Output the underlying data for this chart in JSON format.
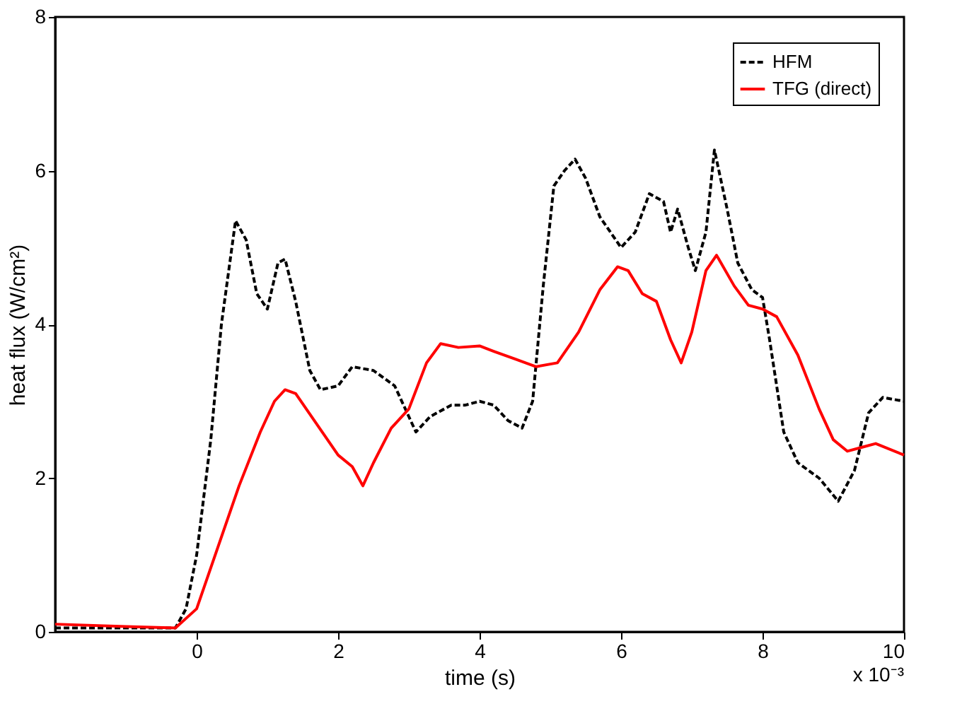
{
  "chart_data": {
    "type": "line",
    "xlabel": "time (s)",
    "ylabel": "heat flux (W/cm²)",
    "xlim": [
      -2,
      10
    ],
    "xticks": [
      0,
      2,
      4,
      6,
      8,
      10
    ],
    "ylim": [
      0,
      8
    ],
    "yticks": [
      0,
      2,
      4,
      6,
      8
    ],
    "grid": false,
    "legend": "top right",
    "marker": "none",
    "annotations": [
      "x 10⁻³"
    ],
    "series": [
      {
        "name": "HFM",
        "color": "#000000",
        "line_style": "dashed",
        "x": [
          -2,
          -1,
          -0.3,
          -0.15,
          0,
          0.2,
          0.35,
          0.55,
          0.7,
          0.85,
          1.0,
          1.15,
          1.25,
          1.4,
          1.6,
          1.75,
          2.0,
          2.2,
          2.5,
          2.8,
          3.0,
          3.1,
          3.3,
          3.6,
          3.8,
          4.0,
          4.2,
          4.4,
          4.6,
          4.75,
          4.9,
          5.05,
          5.2,
          5.35,
          5.5,
          5.7,
          6.0,
          6.2,
          6.4,
          6.6,
          6.7,
          6.8,
          6.95,
          7.05,
          7.2,
          7.32,
          7.5,
          7.65,
          7.85,
          8.0,
          8.1,
          8.3,
          8.5,
          8.8,
          9.07,
          9.3,
          9.5,
          9.7,
          10.0
        ],
        "values": [
          0.05,
          0.05,
          0.05,
          0.3,
          1.0,
          2.5,
          4.0,
          5.35,
          5.1,
          4.4,
          4.2,
          4.8,
          4.85,
          4.3,
          3.4,
          3.15,
          3.2,
          3.45,
          3.4,
          3.2,
          2.8,
          2.6,
          2.8,
          2.95,
          2.95,
          3.0,
          2.95,
          2.75,
          2.65,
          3.0,
          4.5,
          5.8,
          6.0,
          6.15,
          5.9,
          5.4,
          5.0,
          5.2,
          5.7,
          5.6,
          5.2,
          5.5,
          5.0,
          4.7,
          5.2,
          6.27,
          5.5,
          4.8,
          4.45,
          4.35,
          3.8,
          2.6,
          2.2,
          2.0,
          1.7,
          2.1,
          2.85,
          3.05,
          3.0
        ]
      },
      {
        "name": "TFG (direct)",
        "color": "#ff0000",
        "line_style": "solid",
        "x": [
          -2,
          -1,
          -0.3,
          0,
          0.3,
          0.6,
          0.9,
          1.1,
          1.25,
          1.4,
          1.7,
          2.0,
          2.2,
          2.35,
          2.5,
          2.75,
          3.0,
          3.25,
          3.45,
          3.7,
          4.0,
          4.2,
          4.5,
          4.8,
          5.1,
          5.4,
          5.7,
          5.95,
          6.1,
          6.3,
          6.5,
          6.7,
          6.85,
          7.0,
          7.2,
          7.35,
          7.6,
          7.8,
          8.0,
          8.2,
          8.5,
          8.8,
          9.0,
          9.2,
          9.4,
          9.6,
          10.0
        ],
        "values": [
          0.1,
          0.07,
          0.05,
          0.3,
          1.1,
          1.9,
          2.6,
          3.0,
          3.15,
          3.1,
          2.7,
          2.3,
          2.15,
          1.9,
          2.2,
          2.65,
          2.9,
          3.5,
          3.75,
          3.7,
          3.72,
          3.65,
          3.55,
          3.45,
          3.5,
          3.9,
          4.45,
          4.75,
          4.7,
          4.4,
          4.3,
          3.8,
          3.5,
          3.9,
          4.7,
          4.9,
          4.5,
          4.25,
          4.2,
          4.1,
          3.6,
          2.9,
          2.5,
          2.35,
          2.4,
          2.45,
          2.3
        ]
      }
    ]
  }
}
